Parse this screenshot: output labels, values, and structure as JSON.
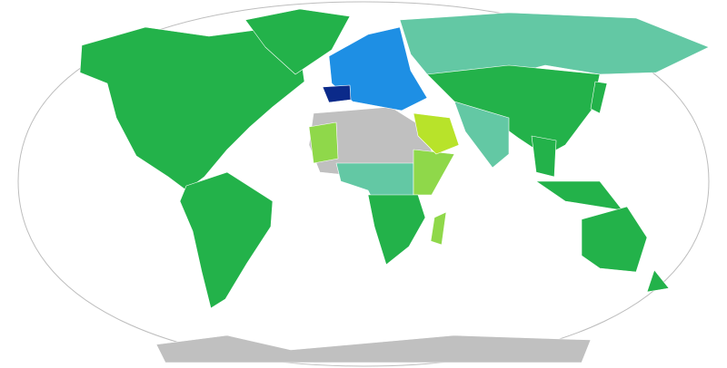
{
  "map": {
    "type": "world-choropleth",
    "projection": "winkel-tripel",
    "colors": {
      "ocean": "#ffffff",
      "outline": "#bdbdbd",
      "highlighted_country": "#0b2a8a",
      "category_blue": "#1e8fe4",
      "category_green": "#23b24a",
      "category_teal": "#63c8a4",
      "category_light_green": "#8fd84a",
      "category_yellow_green": "#b8e32a",
      "no_data_gray": "#c0c0c0"
    }
  }
}
